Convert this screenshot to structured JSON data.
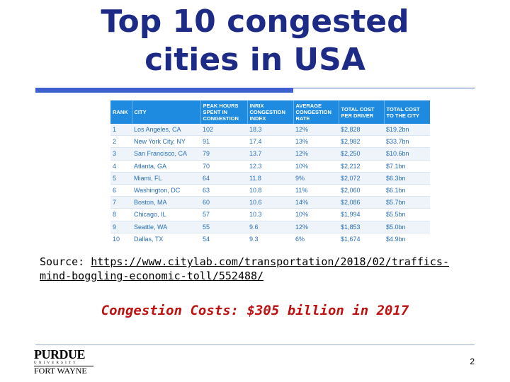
{
  "slide": {
    "title_line1": "Top 10 congested",
    "title_line2": "cities in USA",
    "source_label": "Source:",
    "source_url_line1": "https://www.citylab.com/transportation/2018/02/traffics-",
    "source_url_line2": "mind-boggling-economic-toll/552488/",
    "congestion_text": "Congestion Costs: $305 billion in 2017",
    "page_number": "2",
    "logo": {
      "main": "PURDUE",
      "sub": "UNIVERSITY",
      "campus": "FORT WAYNE"
    }
  },
  "table": {
    "headers": [
      "RANK",
      "CITY",
      "PEAK HOURS SPENT IN CONGESTION",
      "INRIX CONGESTION INDEX",
      "AVERAGE CONGESTION RATE",
      "TOTAL COST PER DRIVER",
      "TOTAL COST TO THE CITY"
    ],
    "rows": [
      [
        "1",
        "Los Angeles, CA",
        "102",
        "18.3",
        "12%",
        "$2,828",
        "$19.2bn"
      ],
      [
        "2",
        "New York City, NY",
        "91",
        "17.4",
        "13%",
        "$2,982",
        "$33.7bn"
      ],
      [
        "3",
        "San Francisco, CA",
        "79",
        "13.7",
        "12%",
        "$2,250",
        "$10.6bn"
      ],
      [
        "4",
        "Atlanta, GA",
        "70",
        "12.3",
        "10%",
        "$2,212",
        "$7.1bn"
      ],
      [
        "5",
        "Miami, FL",
        "64",
        "11.8",
        "9%",
        "$2,072",
        "$6.3bn"
      ],
      [
        "6",
        "Washington, DC",
        "63",
        "10.8",
        "11%",
        "$2,060",
        "$6.1bn"
      ],
      [
        "7",
        "Boston, MA",
        "60",
        "10.6",
        "14%",
        "$2,086",
        "$5.7bn"
      ],
      [
        "8",
        "Chicago, IL",
        "57",
        "10.3",
        "10%",
        "$1,994",
        "$5.5bn"
      ],
      [
        "9",
        "Seattle, WA",
        "55",
        "9.6",
        "12%",
        "$1,853",
        "$5.0bn"
      ],
      [
        "10",
        "Dallas, TX",
        "54",
        "9.3",
        "6%",
        "$1,674",
        "$4.9bn"
      ]
    ]
  },
  "colors": {
    "title": "#1d2a86",
    "header_bg": "#1f8be0",
    "cell_text": "#2a6fb8",
    "accent_bar": "#3d5fcf",
    "congestion": "#c01010"
  }
}
